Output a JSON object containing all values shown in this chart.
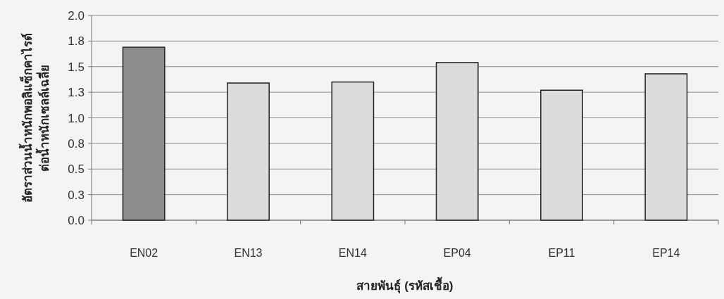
{
  "chart_data": {
    "type": "bar",
    "xlabel": "สายพันธุ์ (รหัสเชื้อ)",
    "ylabel": "อัตราส่วนน้ำหนักพอลิแซ็กคาไรด์\nต่อน้ำหนักเซลล์เฉลี่ย",
    "categories": [
      "EN02",
      "EN13",
      "EN14",
      "EP04",
      "EP11",
      "EP14"
    ],
    "values": [
      1.69,
      1.34,
      1.35,
      1.54,
      1.27,
      1.43
    ],
    "colors": [
      "#8c8c8c",
      "#dcdcdc",
      "#dcdcdc",
      "#dcdcdc",
      "#dcdcdc",
      "#dcdcdc"
    ],
    "ylim": [
      0,
      2
    ],
    "yticks": [
      {
        "value": 0,
        "label": "0.0"
      },
      {
        "value": 0.25,
        "label": "0.3"
      },
      0.5,
      {
        "value": 0.75,
        "label": "0.8"
      },
      {
        "value": 1,
        "label": "1.0"
      },
      {
        "value": 1.25,
        "label": "1.3"
      },
      1.5,
      {
        "value": 1.75,
        "label": "1.8"
      },
      {
        "value": 2,
        "label": "2.0"
      }
    ],
    "grid": "y"
  }
}
